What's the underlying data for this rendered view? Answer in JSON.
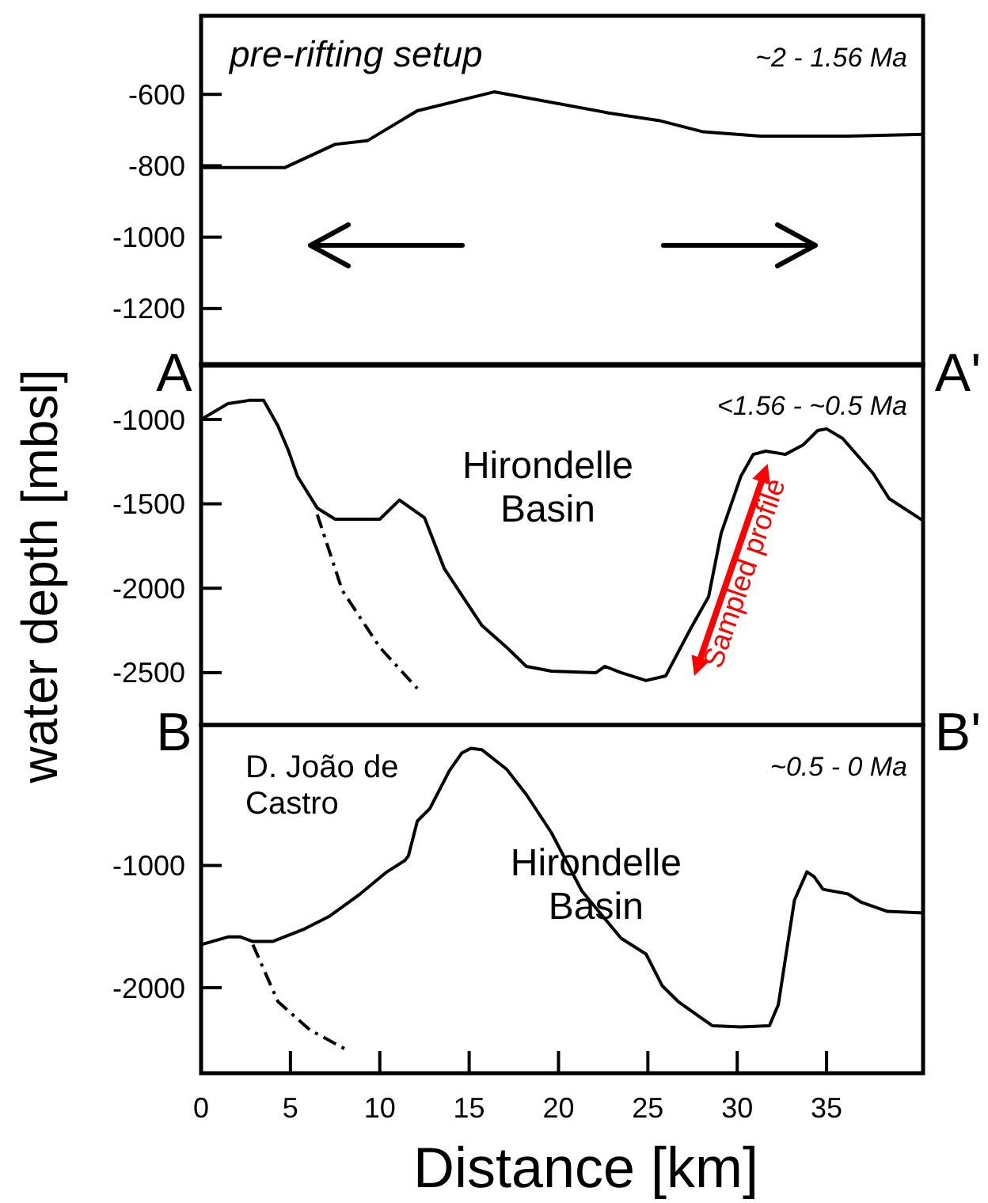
{
  "chart_data": [
    {
      "type": "line",
      "title": "pre-rifting setup",
      "subtitle": "~2 - 1.56 Ma",
      "xlim": [
        0,
        40.4
      ],
      "ylim": [
        -1360,
        -380
      ],
      "yticks": [
        -600,
        -800,
        -1000,
        -1200
      ],
      "tick_labels": "y",
      "annotations": [
        "A",
        "A'"
      ],
      "series": [
        {
          "color": "#000000",
          "line_style": "solid",
          "x": [
            0,
            4.7,
            7.5,
            9.3,
            12.1,
            16.4,
            22.8,
            25.6,
            28.1,
            31.3,
            36.2,
            40.4
          ],
          "values": [
            -805,
            -805,
            -740,
            -730,
            -646,
            -593,
            -652,
            -673,
            -705,
            -717,
            -717,
            -712
          ]
        }
      ]
    },
    {
      "type": "line",
      "subtitle": "<1.56 - ~0.5 Ma",
      "ylabel": "water depth [mbsl]",
      "xlim": [
        0,
        40.4
      ],
      "ylim": [
        -2810,
        -672
      ],
      "yticks": [
        -1000,
        -1500,
        -2000,
        -2500
      ],
      "tick_labels": "y",
      "annotations": [
        "Hirondelle\nBasin",
        "Sampled profile",
        "B",
        "B'"
      ],
      "series": [
        {
          "color": "#000000",
          "line_style": "solid",
          "x": [
            0,
            1.5,
            2.7,
            3.5,
            4.3,
            4.9,
            5.4,
            6.5,
            7.5,
            10.0,
            11.1,
            12.5,
            13.6,
            15.7,
            17.1,
            18.2,
            19.6,
            22.1,
            22.6,
            23.5,
            24.9,
            26.0,
            27.4,
            28.4,
            29.1,
            30.2,
            30.9,
            31.6,
            32.7,
            33.7,
            34.5,
            35.0,
            35.9,
            37.6,
            38.5,
            40.4
          ],
          "values": [
            -1000,
            -906,
            -887,
            -887,
            -1038,
            -1188,
            -1338,
            -1525,
            -1591,
            -1591,
            -1478,
            -1582,
            -1882,
            -2219,
            -2350,
            -2463,
            -2491,
            -2500,
            -2463,
            -2500,
            -2547,
            -2519,
            -2238,
            -2050,
            -1675,
            -1338,
            -1207,
            -1188,
            -1207,
            -1150,
            -1066,
            -1056,
            -1113,
            -1319,
            -1469,
            -1600
          ]
        },
        {
          "color": "#000000",
          "line_style": "dashed",
          "x": [
            6.5,
            7.9,
            10.0,
            12.1
          ],
          "values": [
            -1563,
            -2013,
            -2350,
            -2594
          ]
        }
      ]
    },
    {
      "type": "line",
      "subtitle": "~0.5 - 0 Ma",
      "xlabel": "Distance [km]",
      "xlim": [
        0,
        40.4
      ],
      "ylim": [
        -2700,
        150
      ],
      "xticks": [
        0,
        5,
        10,
        15,
        20,
        25,
        30,
        35
      ],
      "yticks": [
        -1000,
        -2000
      ],
      "annotations": [
        "D. João de\nCastro",
        "Hirondelle\nBasin"
      ],
      "series": [
        {
          "color": "#000000",
          "line_style": "solid",
          "x": [
            0,
            1.5,
            2.2,
            2.9,
            4.0,
            5.8,
            7.2,
            8.9,
            10.4,
            11.4,
            11.6,
            12.1,
            12.8,
            13.9,
            14.6,
            15.1,
            15.7,
            17.1,
            18.2,
            19.6,
            21.3,
            23.5,
            24.9,
            25.8,
            26.7,
            27.7,
            28.6,
            30.2,
            31.8,
            32.3,
            33.2,
            33.9,
            34.3,
            34.8,
            36.2,
            36.9,
            38.4,
            40.4
          ],
          "values": [
            -1648,
            -1585,
            -1585,
            -1622,
            -1622,
            -1518,
            -1414,
            -1233,
            -1052,
            -959,
            -922,
            -637,
            -534,
            -223,
            -78,
            -41,
            -52,
            -213,
            -420,
            -731,
            -1207,
            -1596,
            -1725,
            -1984,
            -2114,
            -2218,
            -2311,
            -2321,
            -2311,
            -2140,
            -1285,
            -1052,
            -1091,
            -1195,
            -1233,
            -1298,
            -1376,
            -1389
          ]
        },
        {
          "color": "#000000",
          "line_style": "dashed",
          "x": [
            2.9,
            4.3,
            6.1,
            8.2
          ],
          "values": [
            -1648,
            -2114,
            -2347,
            -2513
          ]
        }
      ]
    }
  ]
}
